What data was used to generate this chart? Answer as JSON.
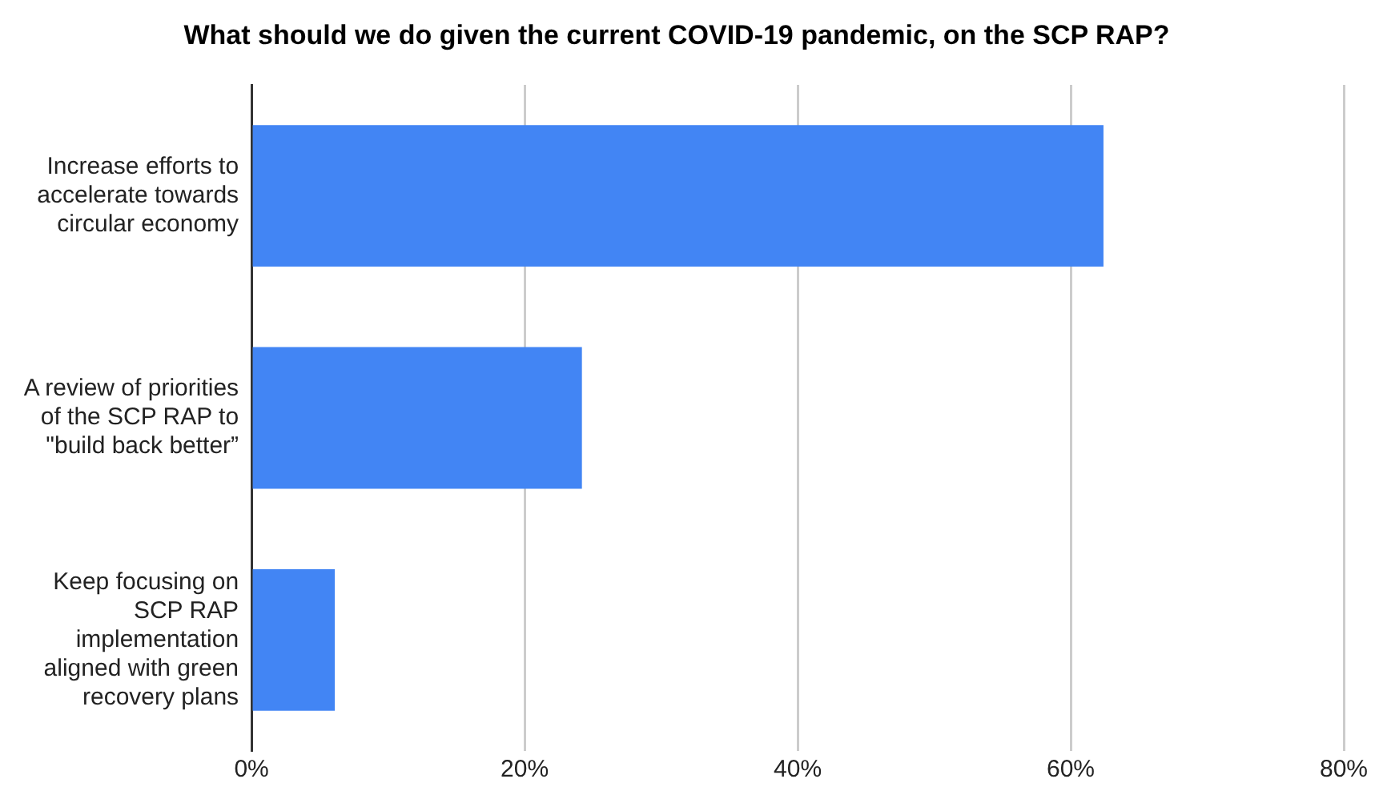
{
  "chart_data": {
    "type": "bar",
    "orientation": "horizontal",
    "title": "What should we do given the current COVID-19 pandemic, on the SCP RAP?",
    "categories": [
      "Increase efforts to accelerate towards circular economy",
      "A review of priorities of the SCP RAP to \"build back better”",
      "Keep focusing on SCP RAP implementation aligned with green recovery plans"
    ],
    "values": [
      62.4,
      24.2,
      6.1
    ],
    "color": "#4285f4",
    "xlim": [
      0,
      80
    ],
    "xticks": [
      {
        "value": 0,
        "label": "0%"
      },
      {
        "value": 20,
        "label": "20%"
      },
      {
        "value": 40,
        "label": "40%"
      },
      {
        "value": 60,
        "label": "60%"
      },
      {
        "value": 80,
        "label": "80%"
      }
    ],
    "grid": "x",
    "legend": false
  }
}
